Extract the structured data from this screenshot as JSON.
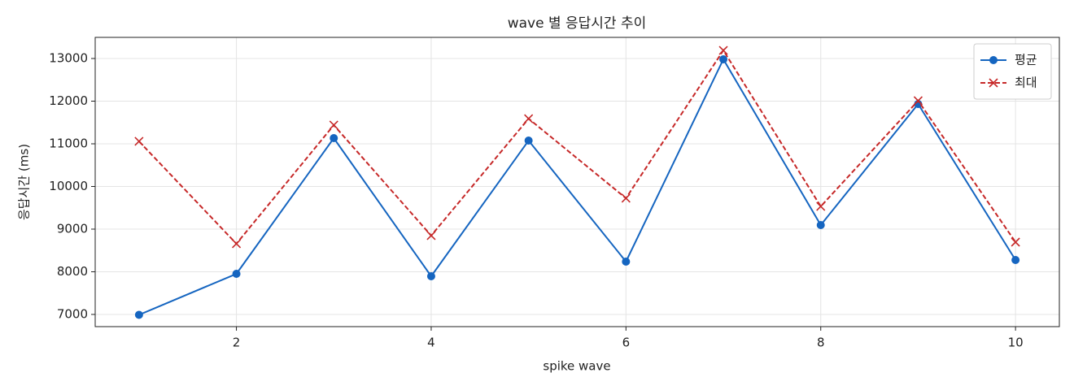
{
  "chart_data": {
    "type": "line",
    "title": "wave 별 응답시간 추이",
    "x_label": "spike wave",
    "y_label": "응답시간 (ms)",
    "x": [
      1,
      2,
      3,
      4,
      5,
      6,
      7,
      8,
      9,
      10
    ],
    "series": [
      {
        "name": "평균",
        "color": "#1565c0",
        "marker": "o",
        "dash": "solid",
        "values": [
          6990,
          7952,
          11133,
          7895,
          11076,
          8238,
          12981,
          9095,
          11933,
          8276
        ]
      },
      {
        "name": "최대",
        "color": "#c62828",
        "marker": "x",
        "dash": "dashed",
        "values": [
          11057,
          8657,
          11438,
          8848,
          11590,
          9724,
          13190,
          9533,
          12010,
          8695
        ]
      }
    ],
    "xlim": [
      0.55,
      10.45
    ],
    "ylim": [
      6714,
      13495
    ],
    "xticks": [
      2,
      4,
      6,
      8,
      10
    ],
    "yticks": [
      7000,
      8000,
      9000,
      10000,
      11000,
      12000,
      13000
    ],
    "grid": true,
    "legend": "upper right"
  }
}
